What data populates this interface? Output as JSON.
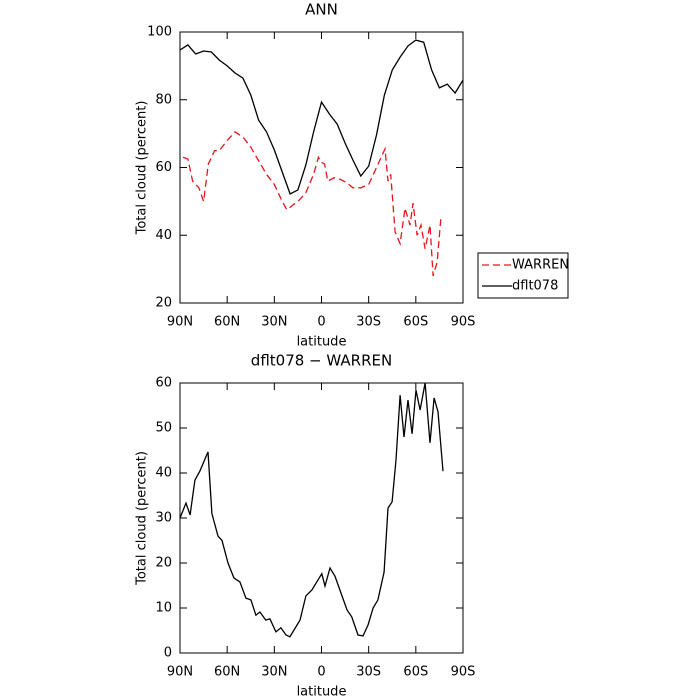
{
  "chart_data": [
    {
      "type": "line",
      "title": "ANN",
      "xlabel": "latitude",
      "ylabel": "Total cloud (percent)",
      "xlim": [
        90,
        -90
      ],
      "xticks": [
        {
          "value": 90,
          "label": "90N"
        },
        {
          "value": 60,
          "label": "60N"
        },
        {
          "value": 30,
          "label": "30N"
        },
        0,
        {
          "value": -30,
          "label": "30S"
        },
        {
          "value": -60,
          "label": "60S"
        },
        {
          "value": -90,
          "label": "90S"
        }
      ],
      "ylim": [
        20,
        100
      ],
      "yticks": [
        20,
        40,
        60,
        80,
        100
      ],
      "legend": "right",
      "series": [
        {
          "name": "WARREN",
          "color": "#e8151b",
          "linestyle": "dashed",
          "x": [
            88,
            85,
            82,
            78,
            75,
            72,
            68,
            65,
            60,
            55,
            50,
            45,
            40,
            35,
            30,
            25,
            22,
            18,
            15,
            10,
            5,
            2,
            0,
            -2,
            -4,
            -8,
            -12,
            -16,
            -20,
            -25,
            -30,
            -35,
            -40.4,
            -42.3,
            -44,
            -46.8,
            -50,
            -53.1,
            -56.3,
            -58.2,
            -60.8,
            -63.3,
            -65.9,
            -69,
            -71,
            -73.5,
            -76
          ],
          "values": [
            63,
            62.5,
            56,
            54,
            50,
            61,
            65,
            65,
            68,
            70.5,
            69,
            66,
            62,
            58,
            55,
            50,
            47.5,
            49,
            50,
            52.5,
            58,
            63,
            61.5,
            61,
            56,
            57,
            56.5,
            55.5,
            54,
            54,
            55,
            60,
            65.5,
            56,
            58,
            41,
            37.5,
            48,
            43,
            49.5,
            40,
            43,
            36,
            43,
            28,
            32,
            45.5
          ]
        },
        {
          "name": "dflt078",
          "color": "#000000",
          "linestyle": "solid",
          "x": [
            90,
            85,
            80,
            75,
            70,
            65,
            60,
            55,
            50,
            45,
            40,
            35,
            30,
            25,
            20,
            15,
            10,
            5,
            0,
            -5,
            -10,
            -15,
            -20,
            -25,
            -30,
            -35,
            -40,
            -45,
            -50,
            -55,
            -60,
            -65,
            -70,
            -75,
            -80,
            -85,
            -90
          ],
          "values": [
            94.7,
            96.2,
            93.5,
            94.4,
            94.1,
            91.7,
            90,
            87.9,
            86.4,
            81.4,
            74,
            70.5,
            65.2,
            58.7,
            52.2,
            53.4,
            60.7,
            70.5,
            79.3,
            75.8,
            72.8,
            67.2,
            62.2,
            57.5,
            60.4,
            69.6,
            81.4,
            88.8,
            92.6,
            95.9,
            97.6,
            97,
            88.8,
            83.5,
            84.6,
            82,
            85.8
          ]
        }
      ]
    },
    {
      "type": "line",
      "title": "dflt078 − WARREN",
      "xlabel": "latitude",
      "ylabel": "Total cloud (percent)",
      "xlim": [
        90,
        -90
      ],
      "xticks": [
        {
          "value": 90,
          "label": "90N"
        },
        {
          "value": 60,
          "label": "60N"
        },
        {
          "value": 30,
          "label": "30N"
        },
        0,
        {
          "value": -30,
          "label": "30S"
        },
        {
          "value": -60,
          "label": "60S"
        },
        {
          "value": -90,
          "label": "90S"
        }
      ],
      "ylim": [
        0,
        60
      ],
      "yticks": [
        0,
        10,
        20,
        30,
        40,
        50,
        60
      ],
      "series": [
        {
          "color": "#000000",
          "linestyle": "solid",
          "x": [
            90,
            86.2,
            83.6,
            80.5,
            77.3,
            72.2,
            69.7,
            65.8,
            63.3,
            59.5,
            55.7,
            51.9,
            48.1,
            44.9,
            41.7,
            39.2,
            35.4,
            32.8,
            29,
            25.8,
            22.6,
            20.1,
            13.7,
            9.9,
            6.1,
            2.3,
            -0.2,
            -2.2,
            -5.4,
            -8.5,
            -11.7,
            -16.2,
            -19.3,
            -23.2,
            -26.4,
            -29.6,
            -32.8,
            -35.9,
            -39.8,
            -42.3,
            -44.9,
            -47.4,
            -50,
            -52.5,
            -55,
            -57.6,
            -60.1,
            -62.7,
            -65.9,
            -69,
            -71.6,
            -74.1,
            -77.3
          ],
          "values": [
            30,
            33.3,
            30.7,
            38.4,
            40.5,
            44.7,
            31,
            26,
            25,
            20,
            16.7,
            15.8,
            12.2,
            11.8,
            8.4,
            9.1,
            7.3,
            7.6,
            4.7,
            5.6,
            4,
            3.6,
            7.3,
            12.7,
            14,
            16.2,
            17.6,
            14.9,
            18.9,
            17.1,
            14,
            9.6,
            8,
            4,
            3.8,
            6.2,
            10,
            11.8,
            18,
            32.2,
            33.6,
            42.9,
            57.3,
            48,
            56.2,
            48.7,
            58.4,
            54,
            60,
            46.7,
            56.7,
            53.6,
            40.4
          ]
        }
      ]
    }
  ]
}
